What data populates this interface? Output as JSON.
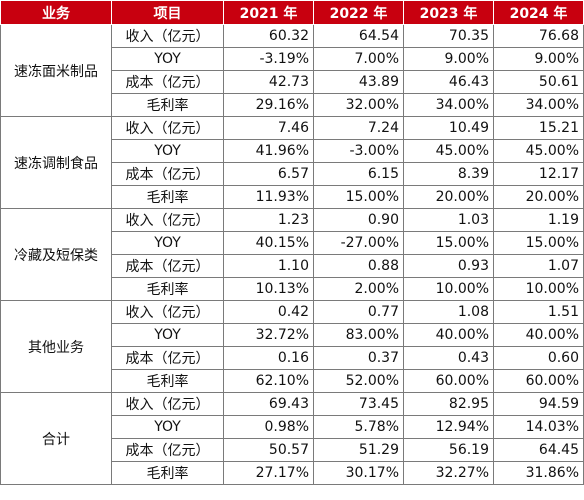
{
  "header": [
    "业务",
    "项目",
    "2021 年",
    "2022 年",
    "2023 年",
    "2024 年"
  ],
  "groups": [
    {
      "business": "速冻面米制品",
      "rows": [
        {
          "item": "收入（亿元）",
          "values": [
            "60.32",
            "64.54",
            "70.35",
            "76.68"
          ]
        },
        {
          "item": "YOY",
          "values": [
            "-3.19%",
            "7.00%",
            "9.00%",
            "9.00%"
          ]
        },
        {
          "item": "成本（亿元）",
          "values": [
            "42.73",
            "43.89",
            "46.43",
            "50.61"
          ]
        },
        {
          "item": "毛利率",
          "values": [
            "29.16%",
            "32.00%",
            "34.00%",
            "34.00%"
          ]
        }
      ]
    },
    {
      "business": "速冻调制食品",
      "rows": [
        {
          "item": "收入（亿元）",
          "values": [
            "7.46",
            "7.24",
            "10.49",
            "15.21"
          ]
        },
        {
          "item": "YOY",
          "values": [
            "41.96%",
            "-3.00%",
            "45.00%",
            "45.00%"
          ]
        },
        {
          "item": "成本（亿元）",
          "values": [
            "6.57",
            "6.15",
            "8.39",
            "12.17"
          ]
        },
        {
          "item": "毛利率",
          "values": [
            "11.93%",
            "15.00%",
            "20.00%",
            "20.00%"
          ]
        }
      ]
    },
    {
      "business": "冷藏及短保类",
      "rows": [
        {
          "item": "收入（亿元）",
          "values": [
            "1.23",
            "0.90",
            "1.03",
            "1.19"
          ]
        },
        {
          "item": "YOY",
          "values": [
            "40.15%",
            "-27.00%",
            "15.00%",
            "15.00%"
          ]
        },
        {
          "item": "成本（亿元）",
          "values": [
            "1.10",
            "0.88",
            "0.93",
            "1.07"
          ]
        },
        {
          "item": "毛利率",
          "values": [
            "10.13%",
            "2.00%",
            "10.00%",
            "10.00%"
          ]
        }
      ]
    },
    {
      "business": "其他业务",
      "rows": [
        {
          "item": "收入（亿元）",
          "values": [
            "0.42",
            "0.77",
            "1.08",
            "1.51"
          ]
        },
        {
          "item": "YOY",
          "values": [
            "32.72%",
            "83.00%",
            "40.00%",
            "40.00%"
          ]
        },
        {
          "item": "成本（亿元）",
          "values": [
            "0.16",
            "0.37",
            "0.43",
            "0.60"
          ]
        },
        {
          "item": "毛利率",
          "values": [
            "62.10%",
            "52.00%",
            "60.00%",
            "60.00%"
          ]
        }
      ]
    },
    {
      "business": "合计",
      "rows": [
        {
          "item": "收入（亿元）",
          "values": [
            "69.43",
            "73.45",
            "82.95",
            "94.59"
          ]
        },
        {
          "item": "YOY",
          "values": [
            "0.98%",
            "5.78%",
            "12.94%",
            "14.03%"
          ]
        },
        {
          "item": "成本（亿元）",
          "values": [
            "50.57",
            "51.29",
            "56.19",
            "64.45"
          ]
        },
        {
          "item": "毛利率",
          "values": [
            "27.17%",
            "30.17%",
            "32.27%",
            "31.86%"
          ]
        }
      ]
    }
  ]
}
